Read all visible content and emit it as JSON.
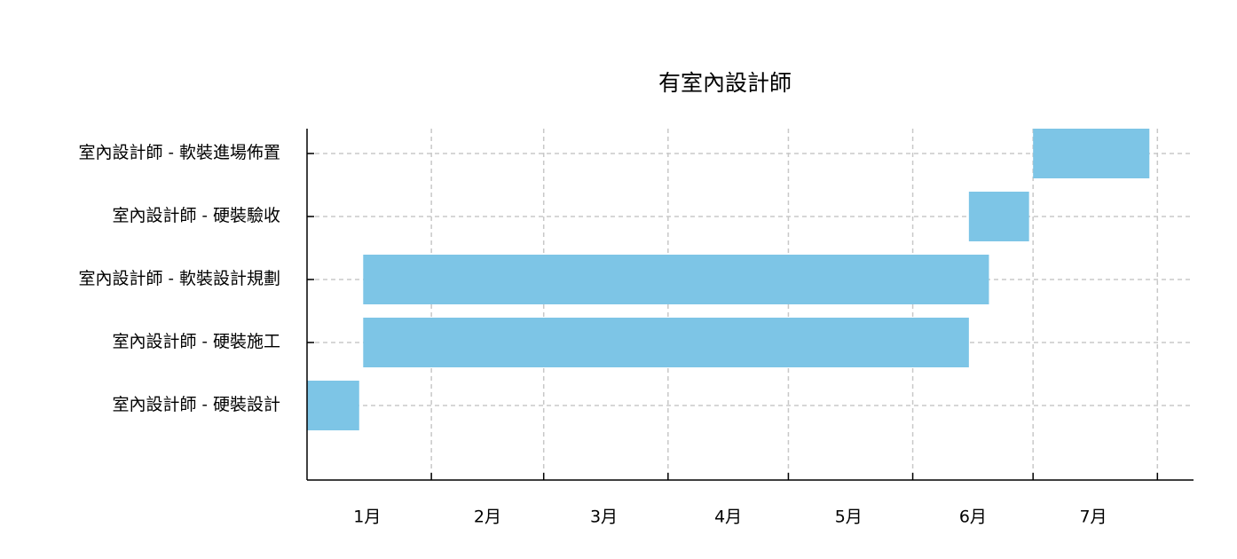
{
  "chart_data": {
    "type": "gantt",
    "title": "有室內設計師",
    "color": "#7dc5e6",
    "tasks": [
      {
        "name": "室內設計師 - 硬裝設計",
        "start": 0,
        "end": 13
      },
      {
        "name": "室內設計師 - 硬裝施工",
        "start": 14,
        "end": 165
      },
      {
        "name": "室內設計師 - 軟裝設計規劃",
        "start": 14,
        "end": 170
      },
      {
        "name": "室內設計師 - 硬裝驗收",
        "start": 165,
        "end": 180
      },
      {
        "name": "室內設計師 - 軟裝進場佈置",
        "start": 181,
        "end": 210
      }
    ],
    "xlim": [
      0,
      221
    ],
    "xticks": [
      31,
      59,
      90,
      120,
      151,
      181,
      212
    ],
    "xtick_labels": [
      {
        "value": 15,
        "label": "1月"
      },
      {
        "value": 45,
        "label": "2月"
      },
      {
        "value": 74,
        "label": "3月"
      },
      {
        "value": 105,
        "label": "4月"
      },
      {
        "value": 135,
        "label": "5月"
      },
      {
        "value": 166,
        "label": "6月"
      },
      {
        "value": 196,
        "label": "7月"
      }
    ],
    "grid": true
  }
}
